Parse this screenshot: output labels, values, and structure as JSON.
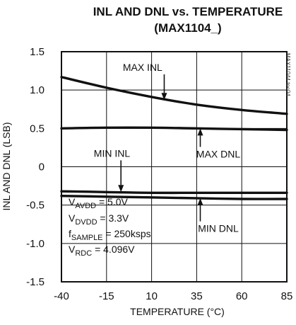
{
  "chart_data": {
    "type": "line",
    "title": [
      "INL AND DNL vs. TEMPERATURE",
      "(MAX1104_)"
    ],
    "xlabel": "TEMPERATURE (°C)",
    "ylabel": "INL AND DNL (LSB)",
    "xlim": [
      -40,
      85
    ],
    "ylim": [
      -1.5,
      1.5
    ],
    "xticks": [
      "-40",
      "-15",
      "10",
      "35",
      "60",
      "85"
    ],
    "yticks": [
      "1.5",
      "1.0",
      "0.5",
      "0",
      "-0.5",
      "-1.0",
      "-1.5"
    ],
    "grid": true,
    "code": "MAX11044 toc04",
    "series": [
      {
        "name": "MAX INL",
        "x": [
          -40,
          -15,
          10,
          35,
          60,
          85
        ],
        "y": [
          1.17,
          1.03,
          0.91,
          0.81,
          0.74,
          0.69
        ]
      },
      {
        "name": "MAX DNL",
        "x": [
          -40,
          -15,
          10,
          35,
          60,
          85
        ],
        "y": [
          0.5,
          0.51,
          0.51,
          0.5,
          0.49,
          0.48
        ]
      },
      {
        "name": "MIN INL",
        "x": [
          -40,
          -15,
          10,
          35,
          60,
          85
        ],
        "y": [
          -0.32,
          -0.33,
          -0.34,
          -0.34,
          -0.34,
          -0.34
        ]
      },
      {
        "name": "MIN DNL",
        "x": [
          -40,
          -15,
          10,
          35,
          60,
          85
        ],
        "y": [
          -0.38,
          -0.39,
          -0.4,
          -0.41,
          -0.42,
          -0.42
        ]
      }
    ],
    "annotations": [
      {
        "text": "MAX INL",
        "x": 5,
        "y": 1.25,
        "arrow_to": [
          17,
          0.87
        ]
      },
      {
        "text": "MAX DNL",
        "x": 47,
        "y": 0.12,
        "arrow_to": [
          37,
          0.5
        ]
      },
      {
        "text": "MIN INL",
        "x": -12,
        "y": 0.13,
        "arrow_to": [
          -7,
          -0.33
        ]
      },
      {
        "text": "MIN DNL",
        "x": 47,
        "y": -0.85,
        "arrow_to": [
          37,
          -0.41
        ]
      }
    ],
    "conditions": [
      {
        "main": "V",
        "sub": "AVDD",
        "rest": " = 5.0V"
      },
      {
        "main": "V",
        "sub": "DVDD",
        "rest": " = 3.3V"
      },
      {
        "main": "f",
        "sub": "SAMPLE",
        "rest": " = 250ksps"
      },
      {
        "main": "V",
        "sub": "RDC",
        "rest": " = 4.096V"
      }
    ]
  }
}
